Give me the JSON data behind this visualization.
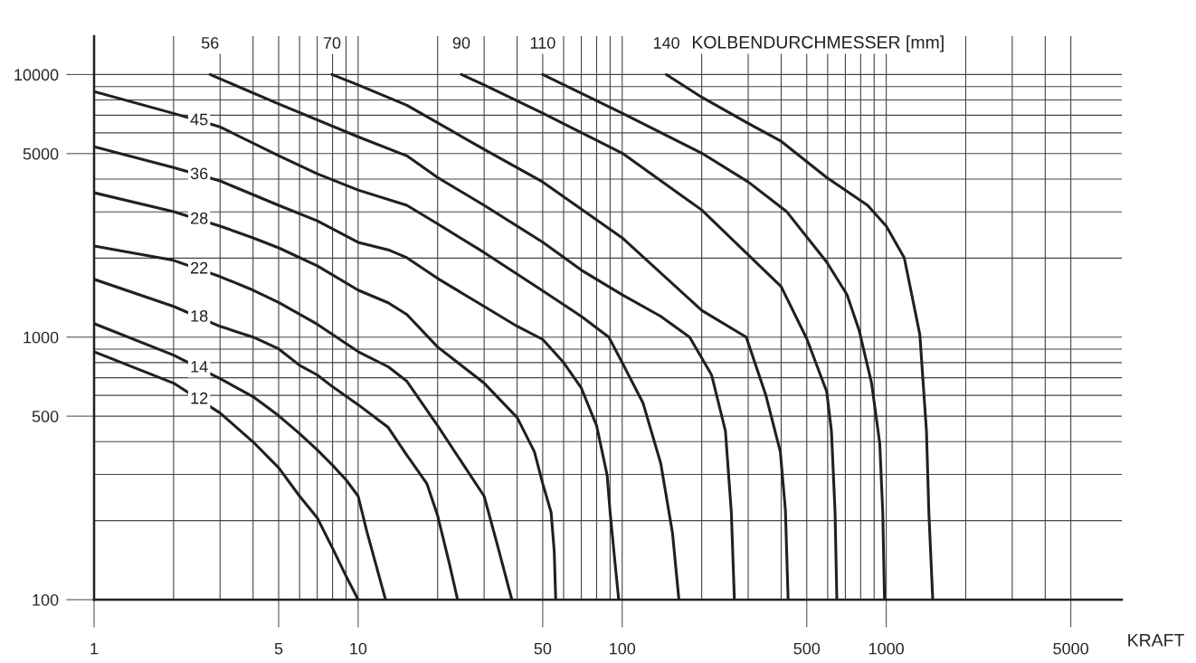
{
  "chart_data": {
    "type": "line",
    "xlabel": "KRAFT",
    "annotations": [
      "KOLBENDURCHMESSER [mm]"
    ],
    "log": "xy",
    "grid": true,
    "marker": "none",
    "line_style": "solid",
    "xlim": [
      1,
      7800
    ],
    "ylim": [
      100,
      14000
    ],
    "xticks": [
      1,
      {
        "value": 2,
        "label": null
      },
      {
        "value": 3,
        "label": null
      },
      {
        "value": 4,
        "label": null
      },
      5,
      {
        "value": 6,
        "label": null
      },
      {
        "value": 7,
        "label": null
      },
      {
        "value": 8,
        "label": null
      },
      {
        "value": 9,
        "label": null
      },
      10,
      {
        "value": 20,
        "label": null
      },
      {
        "value": 30,
        "label": null
      },
      {
        "value": 40,
        "label": null
      },
      50,
      {
        "value": 60,
        "label": null
      },
      {
        "value": 70,
        "label": null
      },
      {
        "value": 80,
        "label": null
      },
      {
        "value": 90,
        "label": null
      },
      100,
      {
        "value": 200,
        "label": null
      },
      {
        "value": 300,
        "label": null
      },
      {
        "value": 400,
        "label": null
      },
      500,
      {
        "value": 600,
        "label": null
      },
      {
        "value": 700,
        "label": null
      },
      {
        "value": 800,
        "label": null
      },
      {
        "value": 900,
        "label": null
      },
      1000,
      {
        "value": 2000,
        "label": null
      },
      {
        "value": 3000,
        "label": null
      },
      {
        "value": 4000,
        "label": null
      },
      5000
    ],
    "yticks": [
      100,
      {
        "value": 200,
        "label": null
      },
      {
        "value": 300,
        "label": null
      },
      {
        "value": 400,
        "label": null
      },
      500,
      {
        "value": 600,
        "label": null
      },
      {
        "value": 700,
        "label": null
      },
      {
        "value": 800,
        "label": null
      },
      {
        "value": 900,
        "label": null
      },
      1000,
      {
        "value": 2000,
        "label": null
      },
      {
        "value": 3000,
        "label": null
      },
      {
        "value": 4000,
        "label": null
      },
      5000,
      {
        "value": 6000,
        "label": null
      },
      {
        "value": 7000,
        "label": null
      },
      {
        "value": 8000,
        "label": null
      },
      {
        "value": 9000,
        "label": null
      },
      10000
    ],
    "series": [
      {
        "name": "12",
        "color": "#231f20",
        "x": [
          1,
          2,
          3,
          4,
          5,
          6,
          7,
          8,
          9,
          10
        ],
        "values": [
          880,
          668,
          514,
          399,
          318,
          248,
          205,
          157,
          123,
          100
        ]
      },
      {
        "name": "14",
        "color": "#231f20",
        "x": [
          1,
          2,
          3,
          4,
          5,
          6,
          7,
          8,
          9,
          10,
          10.8,
          12.7
        ],
        "values": [
          1126,
          854,
          695,
          593,
          502,
          429,
          372,
          325,
          286,
          248,
          181,
          100
        ]
      },
      {
        "name": "18",
        "color": "#231f20",
        "x": [
          1,
          2,
          3,
          4,
          5,
          6,
          7,
          8,
          10,
          13,
          15.3,
          18.2,
          20,
          22.2,
          23.8
        ],
        "values": [
          1660,
          1309,
          1099,
          1000,
          902,
          781,
          718,
          647,
          553,
          453,
          355,
          277,
          209,
          136,
          100
        ]
      },
      {
        "name": "22",
        "color": "#231f20",
        "x": [
          1,
          2,
          3,
          4,
          5,
          7,
          10,
          13,
          15.3,
          20,
          30,
          33.6,
          38.2
        ],
        "values": [
          2223,
          1960,
          1700,
          1510,
          1355,
          1120,
          880,
          771,
          679,
          460,
          248,
          163,
          100
        ]
      },
      {
        "name": "28",
        "color": "#231f20",
        "x": [
          1,
          2,
          3,
          4,
          5,
          7,
          10,
          13,
          15.3,
          20,
          30,
          40,
          46.5,
          50,
          53.8,
          55.3,
          56
        ],
        "values": [
          3548,
          3003,
          2648,
          2388,
          2188,
          1868,
          1510,
          1351,
          1219,
          917,
          668,
          494,
          366,
          277,
          215,
          152,
          100
        ]
      },
      {
        "name": "36",
        "color": "#231f20",
        "x": [
          1,
          2,
          3,
          5,
          7,
          10,
          13,
          15.3,
          20,
          30,
          40,
          50,
          60,
          70,
          80,
          87.7,
          90,
          93.7,
          97
        ],
        "values": [
          5309,
          4426,
          3935,
          3176,
          2773,
          2296,
          2150,
          2006,
          1673,
          1309,
          1100,
          980,
          800,
          640,
          460,
          298,
          215,
          142,
          100
        ]
      },
      {
        "name": "45",
        "color": "#231f20",
        "x": [
          1,
          2,
          3,
          5,
          7,
          10,
          15.3,
          20,
          30,
          50,
          70,
          89,
          100,
          120,
          140,
          155,
          164
        ],
        "values": [
          8610,
          7112,
          6318,
          4909,
          4188,
          3631,
          3176,
          2700,
          2100,
          1500,
          1200,
          1000,
          800,
          560,
          330,
          180,
          100
        ]
      },
      {
        "name": "56",
        "color": "#231f20",
        "x": [
          2.75,
          5,
          10,
          15.3,
          20,
          30,
          50,
          70,
          100,
          140,
          180,
          218,
          246,
          259,
          266
        ],
        "values": [
          10000,
          7730,
          5794,
          4900,
          4055,
          3176,
          2300,
          1800,
          1450,
          1200,
          1000,
          718,
          439,
          215,
          100
        ]
      },
      {
        "name": "70",
        "color": "#231f20",
        "x": [
          7.96,
          10,
          15.3,
          30,
          50,
          100,
          200,
          295,
          350,
          397,
          415,
          425
        ],
        "values": [
          10000,
          9130,
          7640,
          5188,
          3900,
          2388,
          1265,
          1000,
          600,
          366,
          220,
          100
        ]
      },
      {
        "name": "90",
        "color": "#231f20",
        "x": [
          24.6,
          30,
          50,
          100,
          200,
          400,
          500,
          595,
          620,
          640,
          650
        ],
        "values": [
          10000,
          9130,
          7120,
          5020,
          3050,
          1557,
          986,
          620,
          439,
          215,
          100
        ]
      },
      {
        "name": "110",
        "color": "#231f20",
        "x": [
          50,
          100,
          200,
          300,
          420,
          595,
          710,
          790,
          880,
          945,
          970,
          985
        ],
        "values": [
          10000,
          7120,
          5020,
          3900,
          3003,
          1930,
          1452,
          1058,
          668,
          393,
          215,
          100
        ]
      },
      {
        "name": "140",
        "color": "#231f20",
        "x": [
          147,
          200,
          300,
          400,
          595,
          850,
          1000,
          1170,
          1340,
          1420,
          1450,
          1500
        ],
        "values": [
          10000,
          8200,
          6520,
          5570,
          4055,
          3176,
          2648,
          2006,
          1024,
          439,
          215,
          100
        ]
      }
    ]
  }
}
